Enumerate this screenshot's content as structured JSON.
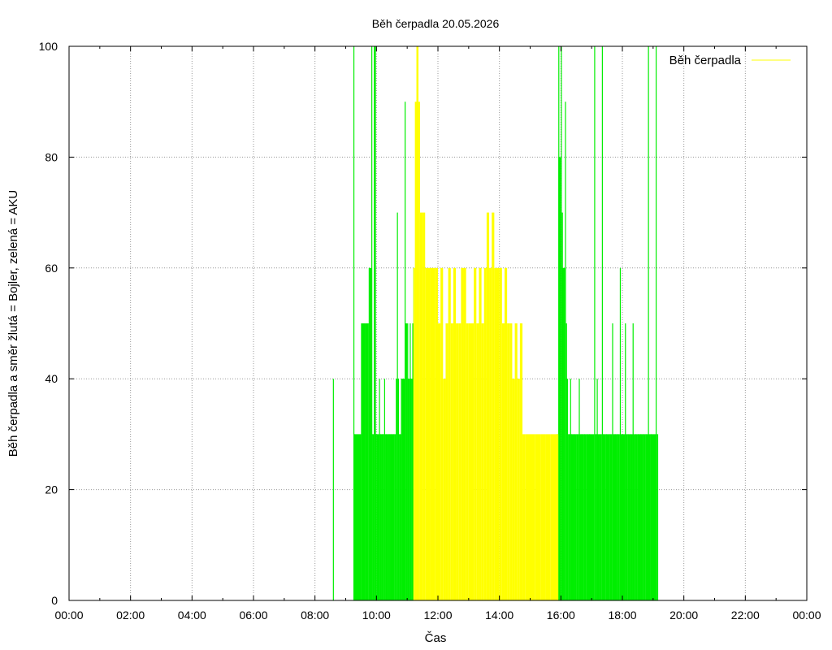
{
  "chart_data": {
    "type": "bar",
    "title": "Běh čerpadla 20.05.2026",
    "xlabel": "Čas",
    "ylabel": "Běh čerpadla a směr žlutá = Bojler, zelená = AKU",
    "xlim_hours": [
      0,
      24
    ],
    "ylim": [
      0,
      100
    ],
    "x_ticks": [
      "00:00",
      "02:00",
      "04:00",
      "06:00",
      "08:00",
      "10:00",
      "12:00",
      "14:00",
      "16:00",
      "18:00",
      "20:00",
      "22:00",
      "00:00"
    ],
    "y_ticks": [
      "0",
      "20",
      "40",
      "60",
      "80",
      "100"
    ],
    "grid": true,
    "legend": {
      "position": "top-right",
      "entries": [
        "Běh čerpadla"
      ]
    },
    "colors": {
      "yellow": "#ffff00",
      "green": "#00ee00",
      "legend_line": "#ffff00"
    },
    "series": [
      {
        "name": "AKU",
        "color": "#00ee00",
        "points": [
          [
            "08:35",
            40
          ],
          [
            "09:15",
            100
          ],
          [
            "09:16",
            30
          ],
          [
            "09:30",
            50
          ],
          [
            "09:38",
            50
          ],
          [
            "09:45",
            60
          ],
          [
            "09:50",
            100
          ],
          [
            "09:52",
            30
          ],
          [
            "09:55",
            100
          ],
          [
            "09:57",
            100
          ],
          [
            "10:00",
            30
          ],
          [
            "10:05",
            40
          ],
          [
            "10:07",
            30
          ],
          [
            "10:10",
            30
          ],
          [
            "10:12",
            30
          ],
          [
            "10:15",
            40
          ],
          [
            "10:18",
            30
          ],
          [
            "10:22",
            30
          ],
          [
            "10:25",
            30
          ],
          [
            "10:28",
            30
          ],
          [
            "10:32",
            30
          ],
          [
            "10:35",
            30
          ],
          [
            "10:38",
            40
          ],
          [
            "10:40",
            70
          ],
          [
            "10:42",
            40
          ],
          [
            "10:45",
            30
          ],
          [
            "10:48",
            40
          ],
          [
            "10:50",
            40
          ],
          [
            "10:55",
            90
          ],
          [
            "10:58",
            50
          ],
          [
            "11:00",
            50
          ],
          [
            "11:02",
            40
          ],
          [
            "11:05",
            50
          ],
          [
            "11:08",
            40
          ],
          [
            "11:10",
            50
          ],
          [
            "11:12",
            60
          ],
          [
            "15:52",
            30
          ],
          [
            "15:55",
            100
          ],
          [
            "15:57",
            80
          ],
          [
            "16:00",
            100
          ],
          [
            "16:02",
            70
          ],
          [
            "16:05",
            60
          ],
          [
            "16:08",
            90
          ],
          [
            "16:10",
            50
          ],
          [
            "16:12",
            40
          ],
          [
            "16:15",
            30
          ],
          [
            "16:18",
            40
          ],
          [
            "16:20",
            30
          ],
          [
            "16:25",
            30
          ],
          [
            "16:30",
            30
          ],
          [
            "16:35",
            40
          ],
          [
            "16:40",
            30
          ],
          [
            "16:45",
            30
          ],
          [
            "16:50",
            30
          ],
          [
            "16:55",
            30
          ],
          [
            "17:05",
            100
          ],
          [
            "17:08",
            30
          ],
          [
            "17:10",
            40
          ],
          [
            "17:15",
            30
          ],
          [
            "17:20",
            100
          ],
          [
            "17:22",
            30
          ],
          [
            "17:28",
            30
          ],
          [
            "17:35",
            30
          ],
          [
            "17:40",
            50
          ],
          [
            "17:45",
            30
          ],
          [
            "17:50",
            30
          ],
          [
            "17:55",
            60
          ],
          [
            "18:00",
            30
          ],
          [
            "18:05",
            50
          ],
          [
            "18:10",
            30
          ],
          [
            "18:15",
            30
          ],
          [
            "18:20",
            50
          ],
          [
            "18:25",
            30
          ],
          [
            "18:30",
            30
          ],
          [
            "18:35",
            30
          ],
          [
            "18:40",
            30
          ],
          [
            "18:45",
            30
          ],
          [
            "18:50",
            100
          ],
          [
            "18:55",
            30
          ],
          [
            "19:05",
            100
          ],
          [
            "19:08",
            30
          ]
        ]
      },
      {
        "name": "Bojler",
        "color": "#ffff00",
        "points": [
          [
            "11:12",
            60
          ],
          [
            "11:15",
            90
          ],
          [
            "11:18",
            100
          ],
          [
            "11:22",
            90
          ],
          [
            "11:25",
            70
          ],
          [
            "11:30",
            70
          ],
          [
            "11:35",
            60
          ],
          [
            "11:45",
            60
          ],
          [
            "11:55",
            60
          ],
          [
            "12:00",
            50
          ],
          [
            "12:05",
            60
          ],
          [
            "12:10",
            40
          ],
          [
            "12:15",
            50
          ],
          [
            "12:20",
            60
          ],
          [
            "12:25",
            50
          ],
          [
            "12:30",
            60
          ],
          [
            "12:35",
            50
          ],
          [
            "12:40",
            50
          ],
          [
            "12:45",
            60
          ],
          [
            "12:50",
            60
          ],
          [
            "12:55",
            50
          ],
          [
            "13:00",
            50
          ],
          [
            "13:05",
            50
          ],
          [
            "13:10",
            60
          ],
          [
            "13:15",
            50
          ],
          [
            "13:20",
            60
          ],
          [
            "13:25",
            50
          ],
          [
            "13:30",
            60
          ],
          [
            "13:35",
            70
          ],
          [
            "13:40",
            60
          ],
          [
            "13:45",
            70
          ],
          [
            "13:50",
            60
          ],
          [
            "14:00",
            60
          ],
          [
            "14:05",
            50
          ],
          [
            "14:10",
            60
          ],
          [
            "14:15",
            50
          ],
          [
            "14:20",
            50
          ],
          [
            "14:25",
            40
          ],
          [
            "14:30",
            50
          ],
          [
            "14:35",
            40
          ],
          [
            "14:40",
            50
          ],
          [
            "14:45",
            30
          ],
          [
            "14:50",
            30
          ],
          [
            "15:00",
            30
          ],
          [
            "15:10",
            30
          ],
          [
            "15:20",
            30
          ],
          [
            "15:30",
            30
          ],
          [
            "15:40",
            30
          ],
          [
            "15:50",
            30
          ]
        ]
      }
    ]
  }
}
